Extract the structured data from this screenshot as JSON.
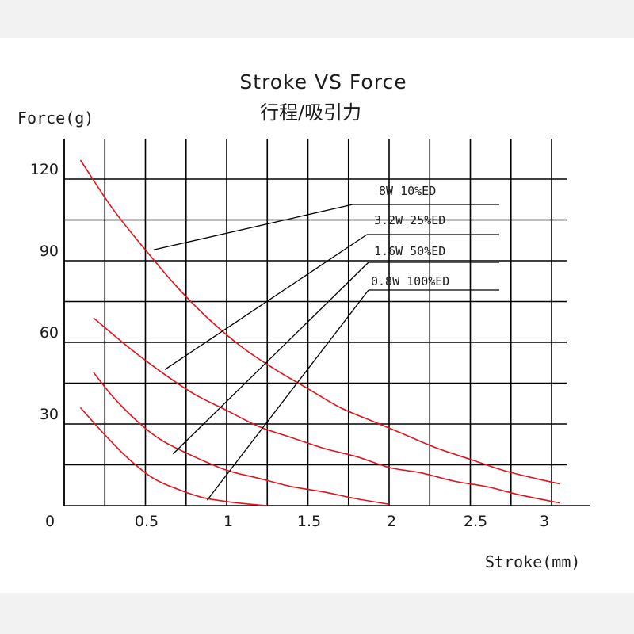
{
  "chart_data": {
    "type": "line",
    "title": "Stroke VS  Force",
    "subtitle": "行程/吸引力",
    "xlabel": "Stroke(mm)",
    "ylabel": "Force(g)",
    "xlim": [
      0,
      3.1
    ],
    "ylim": [
      0,
      135
    ],
    "x_ticks": [
      {
        "value": 0,
        "label": "0"
      },
      {
        "value": 0.5,
        "label": "0.5"
      },
      {
        "value": 1,
        "label": "1"
      },
      {
        "value": 1.5,
        "label": "1.5"
      },
      {
        "value": 2,
        "label": "2"
      },
      {
        "value": 2.5,
        "label": "2.5"
      },
      {
        "value": 3,
        "label": "3"
      }
    ],
    "y_ticks": [
      {
        "value": 30,
        "label": "30"
      },
      {
        "value": 60,
        "label": "60"
      },
      {
        "value": 90,
        "label": "90"
      },
      {
        "value": 120,
        "label": "120"
      }
    ],
    "grid": true,
    "series_color": "#e0141c",
    "series": [
      {
        "name": "8W    10%ED",
        "points": [
          [
            0.1,
            127
          ],
          [
            0.3,
            109
          ],
          [
            0.5,
            94
          ],
          [
            0.7,
            80
          ],
          [
            0.9,
            68
          ],
          [
            1.1,
            58
          ],
          [
            1.3,
            50
          ],
          [
            1.5,
            43
          ],
          [
            1.7,
            36
          ],
          [
            1.9,
            31
          ],
          [
            2.1,
            26
          ],
          [
            2.3,
            21
          ],
          [
            2.5,
            17
          ],
          [
            2.7,
            13
          ],
          [
            2.9,
            10
          ],
          [
            3.05,
            8
          ]
        ],
        "callout": [
          0.55,
          94
        ]
      },
      {
        "name": "3.2W  25%ED",
        "points": [
          [
            0.18,
            69
          ],
          [
            0.4,
            58
          ],
          [
            0.6,
            49
          ],
          [
            0.8,
            41
          ],
          [
            1.0,
            35
          ],
          [
            1.2,
            29
          ],
          [
            1.4,
            25
          ],
          [
            1.6,
            21
          ],
          [
            1.8,
            18
          ],
          [
            2.0,
            14
          ],
          [
            2.2,
            12
          ],
          [
            2.4,
            9
          ],
          [
            2.6,
            7
          ],
          [
            2.8,
            4
          ],
          [
            3.05,
            1
          ]
        ],
        "callout": [
          0.62,
          50
        ]
      },
      {
        "name": "1.6W  50%ED",
        "points": [
          [
            0.18,
            49
          ],
          [
            0.3,
            40
          ],
          [
            0.45,
            31
          ],
          [
            0.6,
            24
          ],
          [
            0.8,
            18
          ],
          [
            1.0,
            13
          ],
          [
            1.2,
            10
          ],
          [
            1.4,
            7
          ],
          [
            1.6,
            5
          ],
          [
            1.8,
            2.5
          ],
          [
            2.0,
            0.5
          ]
        ],
        "callout": [
          0.67,
          19
        ]
      },
      {
        "name": "0.8W  100%ED",
        "points": [
          [
            0.1,
            36
          ],
          [
            0.25,
            26
          ],
          [
            0.4,
            17
          ],
          [
            0.55,
            10
          ],
          [
            0.7,
            6
          ],
          [
            0.85,
            3
          ],
          [
            1.0,
            1.5
          ],
          [
            1.15,
            0.5
          ],
          [
            1.25,
            0
          ]
        ],
        "callout": [
          0.88,
          2
        ]
      }
    ]
  }
}
